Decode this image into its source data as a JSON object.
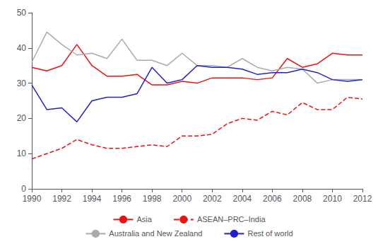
{
  "chart_data": {
    "type": "line",
    "x": [
      1990,
      1991,
      1992,
      1993,
      1994,
      1995,
      1996,
      1997,
      1998,
      1999,
      2000,
      2001,
      2002,
      2003,
      2004,
      2005,
      2006,
      2007,
      2008,
      2009,
      2010,
      2011,
      2012
    ],
    "xlim": [
      1990,
      2012
    ],
    "xticks": [
      1990,
      1992,
      1994,
      1996,
      1998,
      2000,
      2002,
      2004,
      2006,
      2008,
      2010,
      2012
    ],
    "ylim": [
      0,
      50
    ],
    "yticks": [
      0,
      10,
      20,
      30,
      40,
      50
    ],
    "grid": false,
    "legend": "bottom",
    "series": [
      {
        "name": "Asia",
        "color": "#EE1111",
        "line_style": "solid",
        "values": [
          34.5,
          33.5,
          35.0,
          41.0,
          35.0,
          32.0,
          32.0,
          32.5,
          29.5,
          29.5,
          30.5,
          30.0,
          31.5,
          31.5,
          31.5,
          31.0,
          31.5,
          37.0,
          34.5,
          35.5,
          38.5,
          38.0,
          38.0
        ]
      },
      {
        "name": "ASEAN–PRC–India",
        "color": "#EE1111",
        "line_style": "dashed",
        "values": [
          8.5,
          10.0,
          11.5,
          14.0,
          12.5,
          11.5,
          11.5,
          12.0,
          12.5,
          12.0,
          15.0,
          15.0,
          15.5,
          18.5,
          20.0,
          19.5,
          22.0,
          21.0,
          24.5,
          22.5,
          22.5,
          26.0,
          25.5
        ]
      },
      {
        "name": "Australia and New Zealand",
        "color": "#AAAAAA",
        "line_style": "solid",
        "values": [
          36.0,
          44.5,
          41.0,
          38.0,
          38.5,
          37.0,
          42.5,
          36.5,
          36.5,
          35.0,
          38.5,
          35.0,
          35.0,
          34.5,
          37.0,
          34.5,
          33.5,
          34.5,
          34.0,
          30.0,
          31.0,
          31.0,
          31.0
        ]
      },
      {
        "name": "Rest of world",
        "color": "#2222CC",
        "line_style": "solid",
        "values": [
          29.5,
          22.5,
          23.0,
          19.0,
          25.0,
          26.0,
          26.0,
          27.0,
          34.5,
          30.0,
          31.0,
          35.0,
          34.5,
          34.5,
          34.0,
          32.5,
          33.0,
          33.0,
          34.0,
          33.0,
          31.0,
          30.5,
          31.0
        ]
      }
    ]
  }
}
